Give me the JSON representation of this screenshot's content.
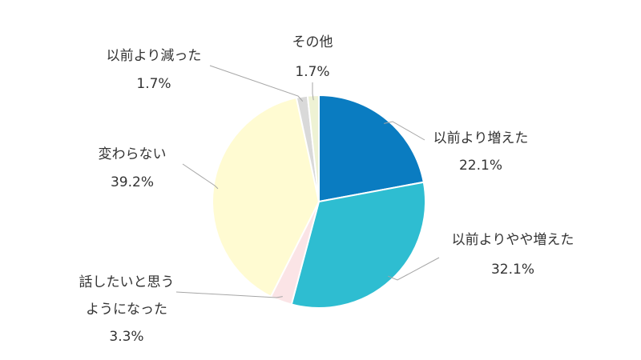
{
  "chart_data": {
    "type": "pie",
    "start_angle_deg": 0,
    "direction": "clockwise",
    "slices": [
      {
        "label": "以前より増えた",
        "value": 22.1,
        "value_label": "22.1%",
        "color": "#0a7cc1"
      },
      {
        "label": "以前よりやや増えた",
        "value": 32.1,
        "value_label": "32.1%",
        "color": "#2ebdd1"
      },
      {
        "label": "話したいと思うようになった",
        "label_lines": [
          "話したいと思う",
          "ようになった"
        ],
        "value": 3.3,
        "value_label": "3.3%",
        "color": "#fbe4e6"
      },
      {
        "label": "変わらない",
        "value": 39.2,
        "value_label": "39.2%",
        "color": "#fffbd2"
      },
      {
        "label": "以前より減った",
        "value": 1.7,
        "value_label": "1.7%",
        "color": "#d9d9d9"
      },
      {
        "label": "その他",
        "value": 1.7,
        "value_label": "1.7%",
        "color": "#eef2d4"
      }
    ]
  }
}
